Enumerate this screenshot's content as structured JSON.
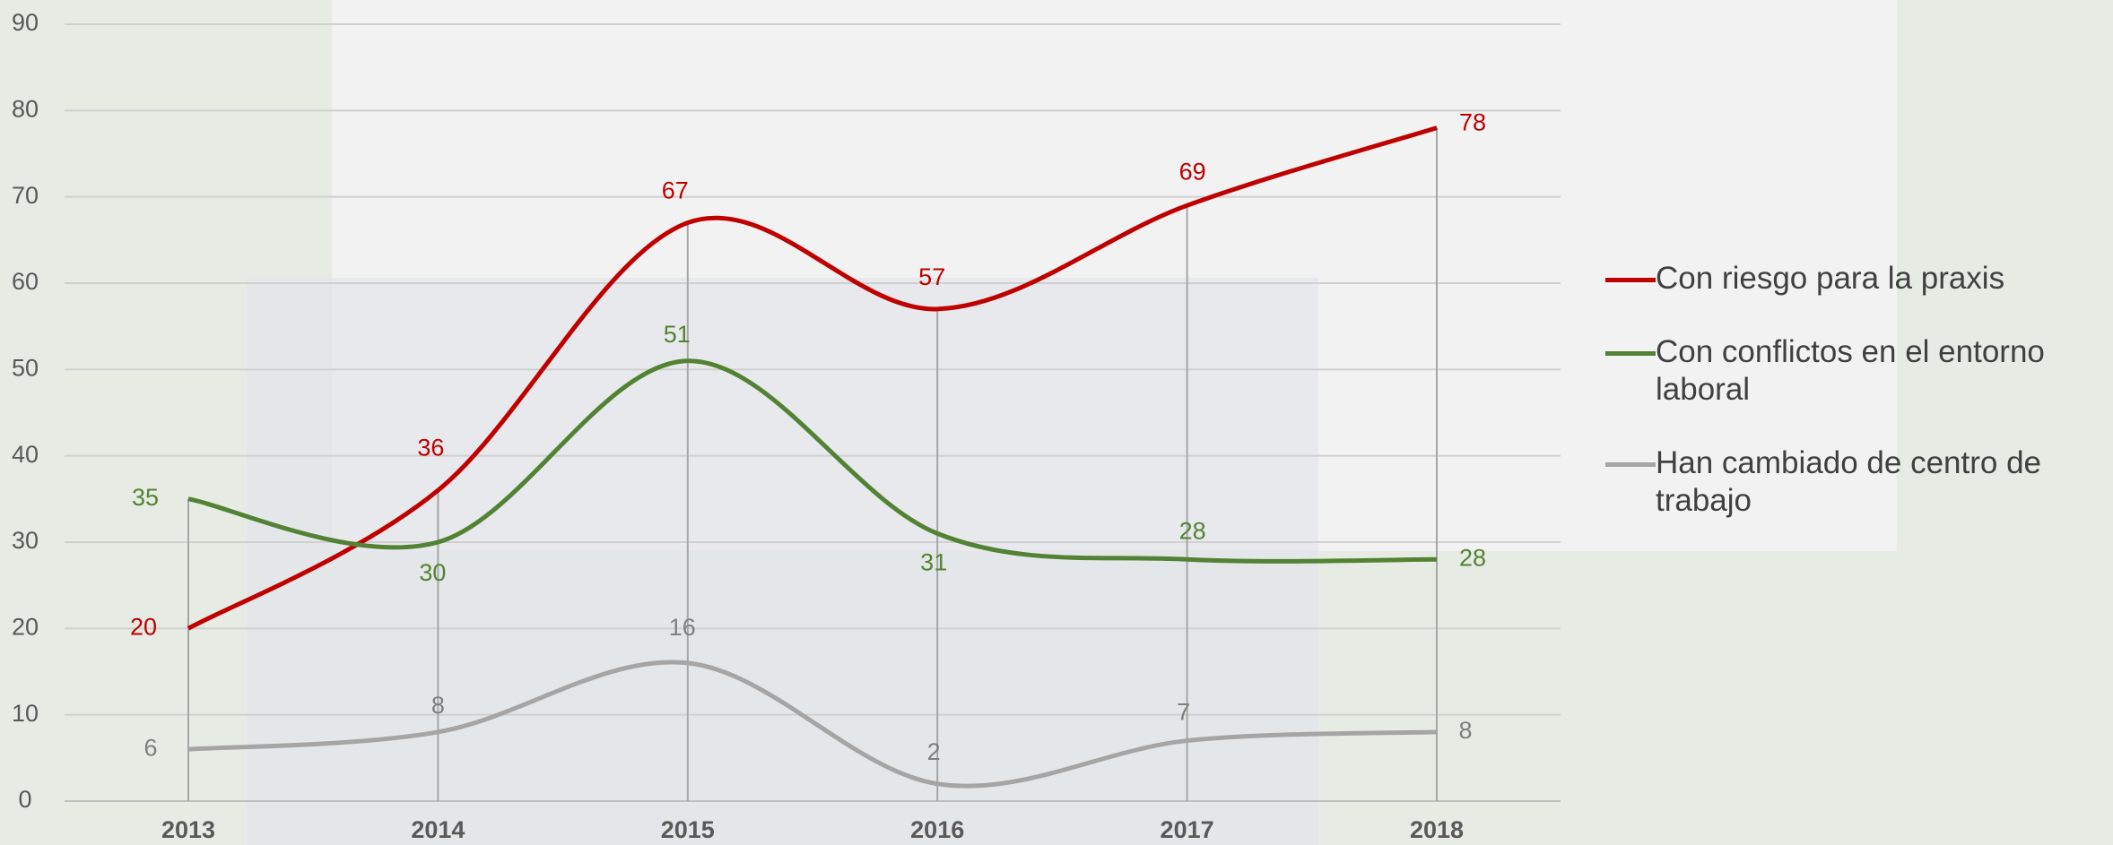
{
  "chart_data": {
    "type": "line",
    "categories": [
      "2013",
      "2014",
      "2015",
      "2016",
      "2017",
      "2018"
    ],
    "series": [
      {
        "name": "Con riesgo para la praxis",
        "color": "#c00000",
        "values": [
          20,
          36,
          67,
          57,
          69,
          78
        ]
      },
      {
        "name": "Con conflictos en el entorno laboral",
        "color": "#548235",
        "values": [
          35,
          30,
          51,
          31,
          28,
          28
        ]
      },
      {
        "name": "Han cambiado de centro de trabajo",
        "color": "#a5a5a5",
        "values": [
          6,
          8,
          16,
          2,
          7,
          8
        ]
      }
    ],
    "ylim": [
      0,
      90
    ],
    "yticks": [
      0,
      10,
      20,
      30,
      40,
      50,
      60,
      70,
      80,
      90
    ],
    "grid": true,
    "legend": "right"
  }
}
